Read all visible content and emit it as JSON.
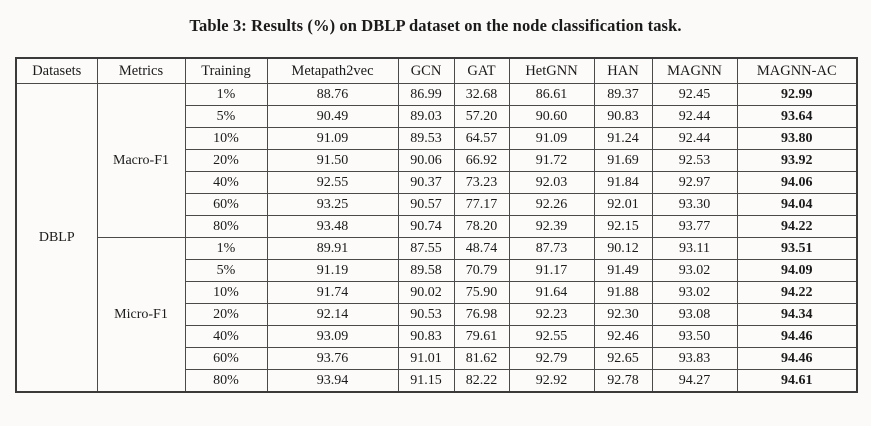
{
  "title": "Table 3: Results (%) on DBLP dataset on the node classification task.",
  "table": {
    "columns": [
      "Datasets",
      "Metrics",
      "Training",
      "Metapath2vec",
      "GCN",
      "GAT",
      "HetGNN",
      "HAN",
      "MAGNN",
      "MAGNN-AC"
    ],
    "dataset": "DBLP",
    "bold_column": "MAGNN-AC",
    "sections": [
      {
        "metric": "Macro-F1",
        "rows": [
          {
            "training": "1%",
            "values": [
              "88.76",
              "86.99",
              "32.68",
              "86.61",
              "89.37",
              "92.45",
              "92.99"
            ]
          },
          {
            "training": "5%",
            "values": [
              "90.49",
              "89.03",
              "57.20",
              "90.60",
              "90.83",
              "92.44",
              "93.64"
            ]
          },
          {
            "training": "10%",
            "values": [
              "91.09",
              "89.53",
              "64.57",
              "91.09",
              "91.24",
              "92.44",
              "93.80"
            ]
          },
          {
            "training": "20%",
            "values": [
              "91.50",
              "90.06",
              "66.92",
              "91.72",
              "91.69",
              "92.53",
              "93.92"
            ]
          },
          {
            "training": "40%",
            "values": [
              "92.55",
              "90.37",
              "73.23",
              "92.03",
              "91.84",
              "92.97",
              "94.06"
            ]
          },
          {
            "training": "60%",
            "values": [
              "93.25",
              "90.57",
              "77.17",
              "92.26",
              "92.01",
              "93.30",
              "94.04"
            ]
          },
          {
            "training": "80%",
            "values": [
              "93.48",
              "90.74",
              "78.20",
              "92.39",
              "92.15",
              "93.77",
              "94.22"
            ]
          }
        ]
      },
      {
        "metric": "Micro-F1",
        "rows": [
          {
            "training": "1%",
            "values": [
              "89.91",
              "87.55",
              "48.74",
              "87.73",
              "90.12",
              "93.11",
              "93.51"
            ]
          },
          {
            "training": "5%",
            "values": [
              "91.19",
              "89.58",
              "70.79",
              "91.17",
              "91.49",
              "93.02",
              "94.09"
            ]
          },
          {
            "training": "10%",
            "values": [
              "91.74",
              "90.02",
              "75.90",
              "91.64",
              "91.88",
              "93.02",
              "94.22"
            ]
          },
          {
            "training": "20%",
            "values": [
              "92.14",
              "90.53",
              "76.98",
              "92.23",
              "92.30",
              "93.08",
              "94.34"
            ]
          },
          {
            "training": "40%",
            "values": [
              "93.09",
              "90.83",
              "79.61",
              "92.55",
              "92.46",
              "93.50",
              "94.46"
            ]
          },
          {
            "training": "60%",
            "values": [
              "93.76",
              "91.01",
              "81.62",
              "92.79",
              "92.65",
              "93.83",
              "94.46"
            ]
          },
          {
            "training": "80%",
            "values": [
              "93.94",
              "91.15",
              "82.22",
              "92.92",
              "92.78",
              "94.27",
              "94.61"
            ]
          }
        ]
      }
    ]
  }
}
